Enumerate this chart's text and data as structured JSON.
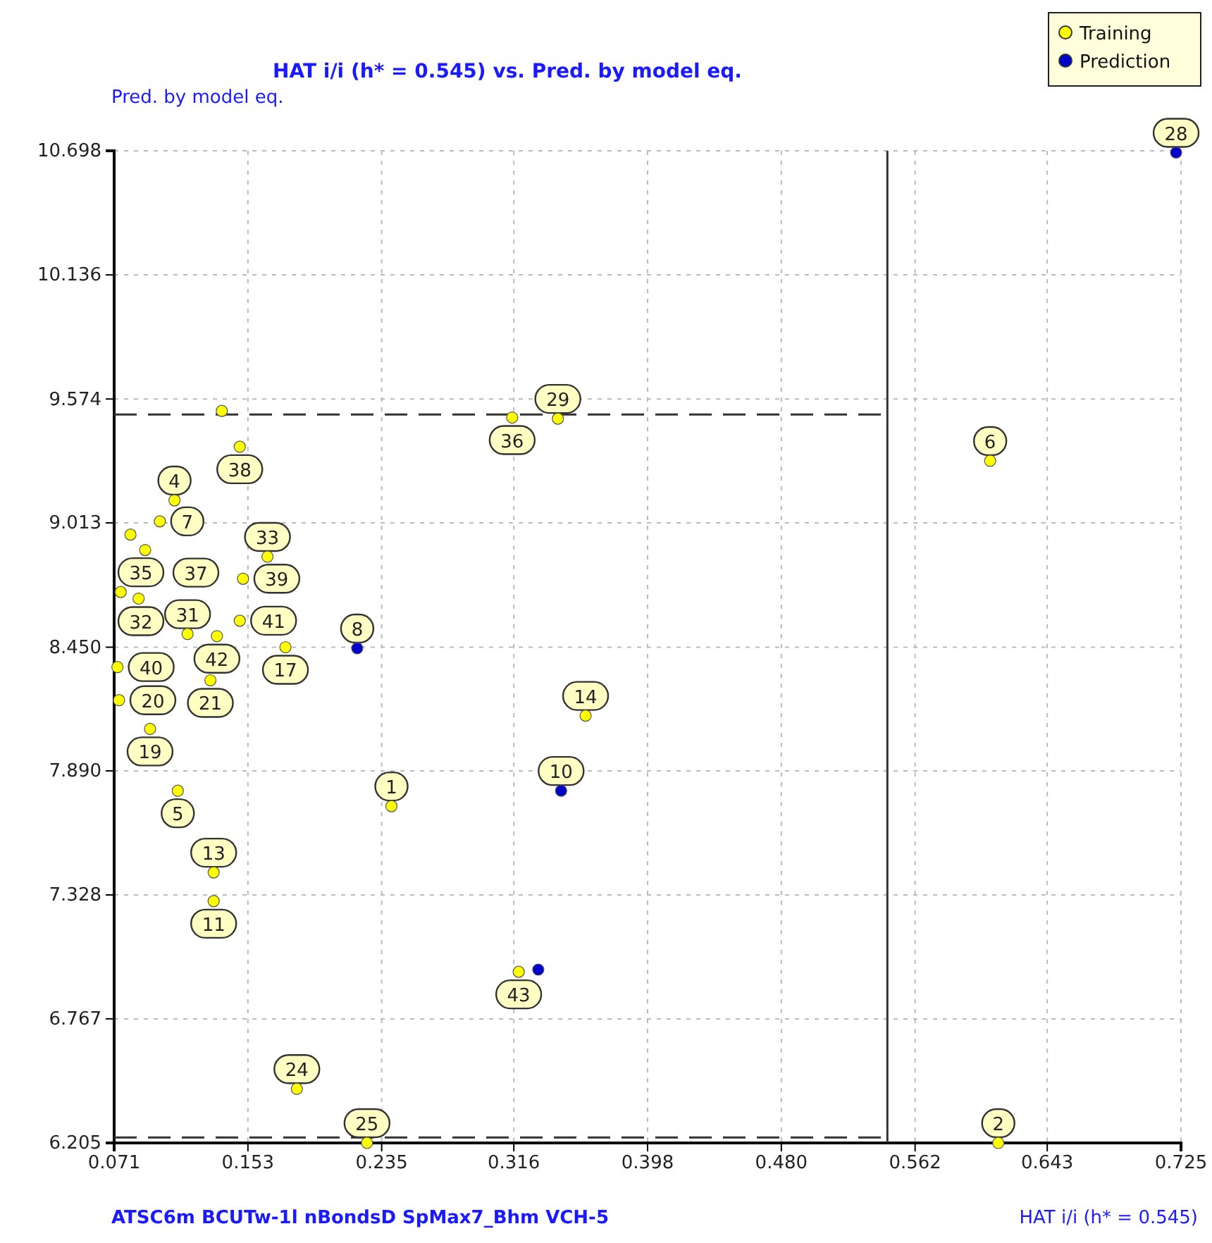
{
  "chart_data": {
    "type": "scatter",
    "title": "HAT i/i (h* = 0.545) vs. Pred. by model eq.",
    "xlabel": "HAT i/i (h* = 0.545)",
    "ylabel": "Pred. by model eq.",
    "xlim": [
      0.071,
      0.725
    ],
    "ylim": [
      6.205,
      10.698
    ],
    "xticks": [
      0.071,
      0.153,
      0.235,
      0.316,
      0.398,
      {
        "value": 0.48,
        "label": "0.480"
      },
      0.562,
      0.643,
      0.725
    ],
    "yticks": [
      6.205,
      6.767,
      7.328,
      {
        "value": 7.89,
        "label": "7.890"
      },
      {
        "value": 8.45,
        "label": "8.450"
      },
      9.013,
      9.574,
      10.136,
      10.698
    ],
    "grid": true,
    "legend": "top right",
    "marker": "circle",
    "series": [
      {
        "name": "Training",
        "color": "#ffff00",
        "x": [
          0.608,
          0.613,
          0.343,
          0.315,
          0.148,
          0.137,
          0.108,
          0.099,
          0.081,
          0.09,
          0.165,
          0.15,
          0.075,
          0.086,
          0.116,
          0.134,
          0.148,
          0.176,
          0.13,
          0.073,
          0.074,
          0.093,
          0.11,
          0.241,
          0.132,
          0.132,
          0.183,
          0.226,
          0.36,
          0.319
        ],
        "values": [
          9.294,
          6.205,
          9.485,
          9.49,
          9.358,
          9.52,
          9.115,
          9.02,
          8.96,
          8.89,
          8.86,
          8.76,
          8.7,
          8.67,
          8.51,
          8.5,
          8.57,
          8.45,
          8.3,
          8.36,
          8.21,
          8.08,
          7.8,
          7.73,
          7.3,
          7.43,
          6.45,
          6.205,
          8.14,
          6.98
        ]
      },
      {
        "name": "Prediction",
        "color": "#0000cc",
        "x": [
          0.722,
          0.22,
          0.345,
          0.331
        ],
        "values": [
          10.69,
          8.445,
          7.8,
          6.99
        ]
      }
    ],
    "ref_lines": [
      {
        "axis": "x",
        "value": 0.545,
        "line_style": "solid"
      },
      {
        "axis": "y",
        "value": 9.504,
        "line_style": "dashed"
      },
      {
        "axis": "y",
        "value": 6.23,
        "line_style": "dashed"
      }
    ],
    "annotations": [
      {
        "text": "6",
        "x": 0.608,
        "y": 9.294
      },
      {
        "text": "2",
        "x": 0.613,
        "y": 6.205
      },
      {
        "text": "29",
        "x": 0.343,
        "y": 9.485
      },
      {
        "text": "36",
        "x": 0.315,
        "y": 9.49
      },
      {
        "text": "38",
        "x": 0.148,
        "y": 9.358
      },
      {
        "text": "4",
        "x": 0.108,
        "y": 9.115
      },
      {
        "text": "7",
        "x": 0.099,
        "y": 9.02
      },
      {
        "text": "37",
        "x": 0.09,
        "y": 8.89
      },
      {
        "text": "33",
        "x": 0.165,
        "y": 8.86
      },
      {
        "text": "39",
        "x": 0.15,
        "y": 8.76
      },
      {
        "text": "32",
        "x": 0.086,
        "y": 8.67
      },
      {
        "text": "35",
        "x": 0.075,
        "y": 8.7
      },
      {
        "text": "31",
        "x": 0.116,
        "y": 8.51
      },
      {
        "text": "41",
        "x": 0.148,
        "y": 8.57
      },
      {
        "text": "42",
        "x": 0.134,
        "y": 8.5
      },
      {
        "text": "17",
        "x": 0.176,
        "y": 8.45
      },
      {
        "text": "8",
        "x": 0.22,
        "y": 8.445
      },
      {
        "text": "21",
        "x": 0.13,
        "y": 8.3
      },
      {
        "text": "40",
        "x": 0.073,
        "y": 8.36
      },
      {
        "text": "20",
        "x": 0.074,
        "y": 8.21
      },
      {
        "text": "19",
        "x": 0.093,
        "y": 8.08
      },
      {
        "text": "5",
        "x": 0.11,
        "y": 7.8
      },
      {
        "text": "1",
        "x": 0.241,
        "y": 7.73
      },
      {
        "text": "13",
        "x": 0.132,
        "y": 7.43
      },
      {
        "text": "11",
        "x": 0.132,
        "y": 7.3
      },
      {
        "text": "24",
        "x": 0.183,
        "y": 6.45
      },
      {
        "text": "25",
        "x": 0.226,
        "y": 6.205
      },
      {
        "text": "14",
        "x": 0.36,
        "y": 8.14
      },
      {
        "text": "10",
        "x": 0.345,
        "y": 7.8
      },
      {
        "text": "43",
        "x": 0.319,
        "y": 6.98
      },
      {
        "text": "28",
        "x": 0.722,
        "y": 10.69
      },
      "ATSC6m  BCUTw-1l  nBondsD  SpMax7_Bhm  VCH-5"
    ]
  }
}
